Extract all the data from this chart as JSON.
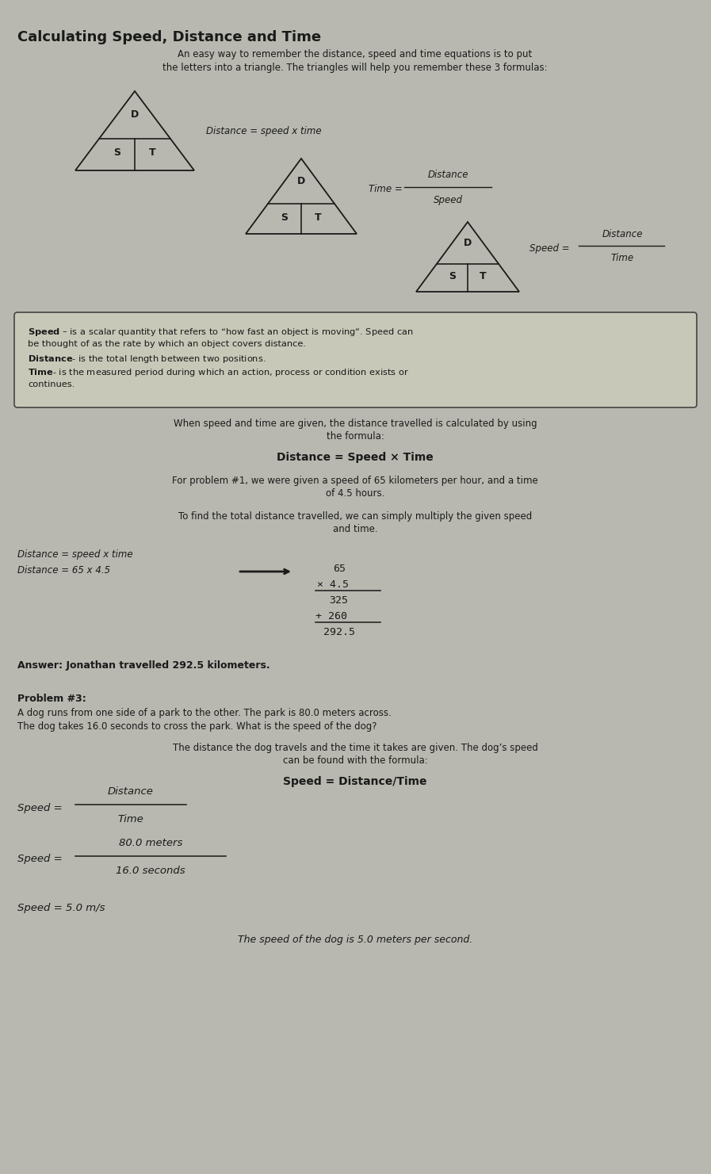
{
  "title": "Calculating Speed, Distance and Time",
  "bg_color": "#b8b8b0",
  "paper_color": "#c8c8bc",
  "text_color": "#1a1a1a",
  "intro_line1": "An easy way to remember the distance, speed and time equations is to put",
  "intro_line2": "the letters into a triangle. The triangles will help you remember these 3 formulas:",
  "tri1_formula": "Distance = speed x time",
  "tri2_formula_left": "Time =",
  "tri2_formula_num": "Distance",
  "tri2_formula_den": "Speed",
  "tri3_formula_left": "Speed =",
  "tri3_formula_num": "Distance",
  "tri3_formula_den": "Time",
  "box_line1": "Speed – is a scalar quantity that refers to “how fast an object is moving”. Speed can",
  "box_line2": "be thought of as the rate by which an object covers distance.",
  "box_line3": "Distance- is the total length between two positions.",
  "box_line4": "Time- is the measured period during which an action, process or condition exists or",
  "box_line5": "continues.",
  "para1_line1": "When speed and time are given, the distance travelled is calculated by using",
  "para1_line2": "the formula:",
  "formula_center": "Distance = Speed × Time",
  "para2_line1": "For problem #1, we were given a speed of 65 kilometers per hour, and a time",
  "para2_line2": "of 4.5 hours.",
  "para3_line1": "To find the total distance travelled, we can simply multiply the given speed",
  "para3_line2": "and time.",
  "small_f1": "Distance = speed x time",
  "small_f2": "Distance = 65 x 4.5",
  "mult_line1": "65",
  "mult_line2": "× 4.5",
  "mult_line3": "325",
  "mult_line4": "+ 260",
  "mult_line5": "292.5",
  "answer": "Answer: Jonathan travelled 292.5 kilometers.",
  "p3_header": "Problem #3:",
  "p3_line1": "A dog runs from one side of a park to the other. The park is 80.0 meters across.",
  "p3_line2": "The dog takes 16.0 seconds to cross the park. What is the speed of the dog?",
  "p3_para1": "The distance the dog travels and the time it takes are given. The dog’s speed",
  "p3_para2": "can be found with the formula:",
  "speed_formula": "Speed = Distance/Time",
  "sf1_left": "Speed =",
  "sf1_num": "Distance",
  "sf1_den": "Time",
  "sf2_left": "Speed =",
  "sf2_num": "80.0 meters",
  "sf2_den": "16.0 seconds",
  "speed_result": "Speed = 5.0 m/s",
  "final_line": "The speed of the dog is 5.0 meters per second."
}
